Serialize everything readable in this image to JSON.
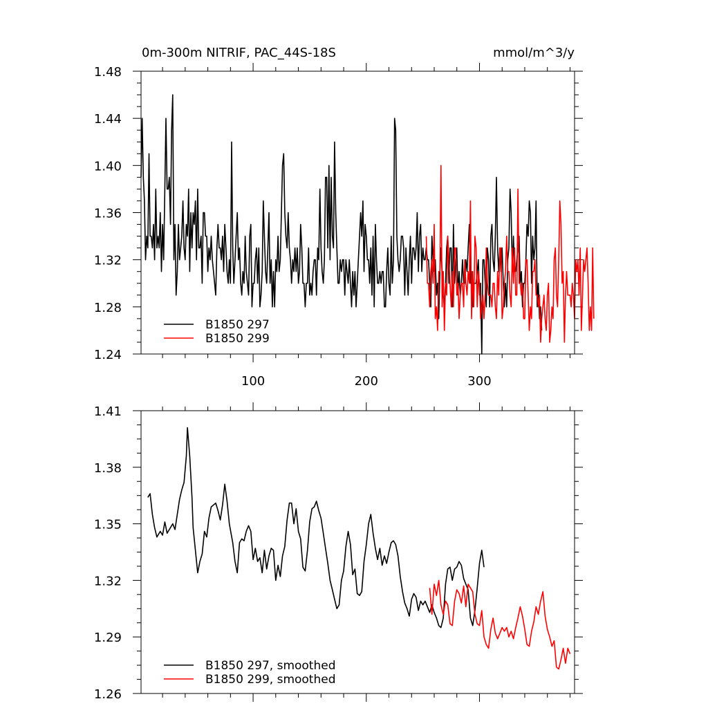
{
  "chart_data": [
    {
      "type": "line",
      "title_left": "0m-300m NITRIF, PAC_44S-18S",
      "title_right": "mmol/m^3/y",
      "xlabel": "",
      "ylabel": "",
      "xlim": [
        1,
        384
      ],
      "ylim": [
        1.24,
        1.48
      ],
      "x_ticks": [
        100,
        200,
        300
      ],
      "x_tick_labels": [
        "100",
        "200",
        "300"
      ],
      "y_ticks": [
        1.24,
        1.28,
        1.32,
        1.36,
        1.4,
        1.44,
        1.48
      ],
      "y_tick_labels": [
        "1.24",
        "1.28",
        "1.32",
        "1.36",
        "1.40",
        "1.44",
        "1.48"
      ],
      "grid": false,
      "legend_position": "bottom-left",
      "series": [
        {
          "name": "B1850 297",
          "color": "#000000",
          "x_start": 1,
          "values": [
            1.39,
            1.44,
            1.39,
            1.37,
            1.32,
            1.34,
            1.33,
            1.41,
            1.34,
            1.34,
            1.33,
            1.35,
            1.32,
            1.38,
            1.33,
            1.34,
            1.33,
            1.36,
            1.31,
            1.35,
            1.32,
            1.38,
            1.44,
            1.38,
            1.38,
            1.39,
            1.35,
            1.43,
            1.46,
            1.32,
            1.35,
            1.29,
            1.31,
            1.35,
            1.32,
            1.33,
            1.34,
            1.37,
            1.33,
            1.32,
            1.35,
            1.34,
            1.38,
            1.31,
            1.36,
            1.33,
            1.36,
            1.35,
            1.37,
            1.32,
            1.38,
            1.33,
            1.33,
            1.34,
            1.3,
            1.36,
            1.36,
            1.34,
            1.34,
            1.31,
            1.33,
            1.32,
            1.34,
            1.32,
            1.31,
            1.3,
            1.29,
            1.33,
            1.35,
            1.33,
            1.33,
            1.32,
            1.34,
            1.31,
            1.35,
            1.33,
            1.31,
            1.3,
            1.32,
            1.3,
            1.42,
            1.33,
            1.3,
            1.32,
            1.34,
            1.36,
            1.32,
            1.33,
            1.3,
            1.29,
            1.31,
            1.3,
            1.34,
            1.31,
            1.3,
            1.29,
            1.34,
            1.35,
            1.28,
            1.3,
            1.3,
            1.32,
            1.33,
            1.3,
            1.33,
            1.28,
            1.29,
            1.31,
            1.37,
            1.34,
            1.31,
            1.3,
            1.33,
            1.36,
            1.3,
            1.32,
            1.28,
            1.31,
            1.28,
            1.32,
            1.31,
            1.34,
            1.31,
            1.32,
            1.36,
            1.4,
            1.41,
            1.36,
            1.34,
            1.33,
            1.36,
            1.33,
            1.32,
            1.3,
            1.32,
            1.31,
            1.33,
            1.31,
            1.33,
            1.3,
            1.31,
            1.35,
            1.33,
            1.3,
            1.3,
            1.28,
            1.3,
            1.3,
            1.33,
            1.29,
            1.3,
            1.29,
            1.31,
            1.32,
            1.32,
            1.29,
            1.33,
            1.32,
            1.38,
            1.33,
            1.31,
            1.3,
            1.32,
            1.39,
            1.39,
            1.33,
            1.4,
            1.32,
            1.39,
            1.34,
            1.33,
            1.42,
            1.36,
            1.33,
            1.3,
            1.3,
            1.32,
            1.31,
            1.32,
            1.32,
            1.29,
            1.32,
            1.31,
            1.3,
            1.32,
            1.3,
            1.28,
            1.31,
            1.29,
            1.31,
            1.28,
            1.3,
            1.32,
            1.34,
            1.36,
            1.34,
            1.37,
            1.31,
            1.35,
            1.34,
            1.32,
            1.32,
            1.3,
            1.33,
            1.29,
            1.34,
            1.28,
            1.35,
            1.32,
            1.3,
            1.3,
            1.31,
            1.3,
            1.31,
            1.31,
            1.28,
            1.28,
            1.31,
            1.33,
            1.3,
            1.29,
            1.34,
            1.3,
            1.32,
            1.44,
            1.43,
            1.34,
            1.32,
            1.31,
            1.32,
            1.34,
            1.34,
            1.33,
            1.29,
            1.33,
            1.31,
            1.29,
            1.32,
            1.34,
            1.3,
            1.33,
            1.33,
            1.32,
            1.33,
            1.36,
            1.31,
            1.34,
            1.35,
            1.31,
            1.33,
            1.32,
            1.32,
            1.33,
            1.32,
            1.32,
            1.3,
            1.28,
            1.34,
            1.32,
            1.31,
            1.32,
            1.29,
            1.3,
            1.27,
            1.31,
            1.33,
            1.31,
            1.29,
            1.28,
            1.3,
            1.33,
            1.34,
            1.3,
            1.33,
            1.33,
            1.28,
            1.35,
            1.3,
            1.32,
            1.33,
            1.29,
            1.31,
            1.29,
            1.3,
            1.32,
            1.3,
            1.3,
            1.32,
            1.31,
            1.33,
            1.35,
            1.3,
            1.31,
            1.28,
            1.3,
            1.3,
            1.3,
            1.31,
            1.32,
            1.29,
            1.3,
            1.24,
            1.32,
            1.32,
            1.3,
            1.28,
            1.33,
            1.32,
            1.28,
            1.34,
            1.35,
            1.32,
            1.31,
            1.34,
            1.39,
            1.33,
            1.31,
            1.33,
            1.31,
            1.33,
            1.3,
            1.28,
            1.3,
            1.28,
            1.32,
            1.33,
            1.38,
            1.36,
            1.31,
            1.34,
            1.31,
            1.31,
            1.32,
            1.33,
            1.34,
            1.3,
            1.31,
            1.28,
            1.3,
            1.3,
            1.32,
            1.35,
            1.34,
            1.37,
            1.36,
            1.3,
            1.34,
            1.32,
            1.33,
            1.37,
            1.28,
            1.3,
            1.27,
            1.28,
            1.26
          ]
        },
        {
          "name": "B1850 299",
          "color": "#ff0000",
          "x_start": 253,
          "values": [
            1.34,
            1.3,
            1.3,
            1.28,
            1.31,
            1.32,
            1.3,
            1.35,
            1.27,
            1.28,
            1.26,
            1.31,
            1.31,
            1.4,
            1.28,
            1.31,
            1.26,
            1.3,
            1.29,
            1.34,
            1.32,
            1.3,
            1.28,
            1.31,
            1.28,
            1.33,
            1.33,
            1.29,
            1.3,
            1.27,
            1.29,
            1.3,
            1.3,
            1.28,
            1.32,
            1.3,
            1.29,
            1.31,
            1.3,
            1.37,
            1.27,
            1.31,
            1.28,
            1.34,
            1.33,
            1.28,
            1.31,
            1.3,
            1.27,
            1.28,
            1.29,
            1.27,
            1.29,
            1.33,
            1.3,
            1.29,
            1.29,
            1.29,
            1.28,
            1.3,
            1.3,
            1.28,
            1.27,
            1.31,
            1.29,
            1.33,
            1.33,
            1.27,
            1.28,
            1.3,
            1.31,
            1.34,
            1.31,
            1.31,
            1.29,
            1.28,
            1.33,
            1.3,
            1.33,
            1.29,
            1.29,
            1.38,
            1.3,
            1.3,
            1.29,
            1.3,
            1.27,
            1.27,
            1.32,
            1.32,
            1.29,
            1.26,
            1.28,
            1.27,
            1.31,
            1.31,
            1.32,
            1.29,
            1.29,
            1.28,
            1.29,
            1.25,
            1.27,
            1.28,
            1.29,
            1.27,
            1.26,
            1.29,
            1.3,
            1.25,
            1.26,
            1.28,
            1.27,
            1.32,
            1.33,
            1.29,
            1.28,
            1.32,
            1.37,
            1.35,
            1.3,
            1.31,
            1.25,
            1.29,
            1.31,
            1.29,
            1.29,
            1.29,
            1.28,
            1.3,
            1.29,
            1.27,
            1.32,
            1.31,
            1.32,
            1.29,
            1.33,
            1.26,
            1.29,
            1.32,
            1.31,
            1.32,
            1.33,
            1.3,
            1.26,
            1.28,
            1.26,
            1.33,
            1.27
          ]
        }
      ]
    },
    {
      "type": "line",
      "xlim": [
        1,
        384
      ],
      "ylim": [
        1.26,
        1.41
      ],
      "x_ticks": [
        100,
        200,
        300
      ],
      "x_tick_labels": [],
      "y_ticks": [
        1.26,
        1.29,
        1.32,
        1.35,
        1.38,
        1.41
      ],
      "y_tick_labels": [
        "1.26",
        "1.29",
        "1.32",
        "1.35",
        "1.38",
        "1.41"
      ],
      "grid": false,
      "legend_position": "bottom-left",
      "series": [
        {
          "name": "B1850 297, smoothed",
          "color": "#000000",
          "x": [
            7,
            9,
            11,
            13,
            15,
            18,
            20,
            22,
            24,
            25,
            27,
            29,
            31,
            33,
            35,
            37,
            39,
            41,
            42,
            44,
            46,
            47,
            49,
            51,
            53,
            55,
            57,
            59,
            61,
            63,
            65,
            67,
            69,
            71,
            73,
            75,
            77,
            79,
            82,
            84,
            86,
            88,
            90,
            92,
            94,
            96,
            98,
            100,
            102,
            104,
            106,
            108,
            110,
            112,
            114,
            116,
            118,
            120,
            122,
            124,
            126,
            128,
            130,
            132,
            134,
            136,
            138,
            140,
            142,
            144,
            146,
            148,
            150,
            152,
            154,
            156,
            158,
            160,
            162,
            164,
            166,
            168,
            170,
            172,
            174,
            176,
            178,
            180,
            182,
            184,
            186,
            188,
            190,
            192,
            194,
            196,
            198,
            200,
            202,
            204,
            206,
            208,
            210,
            212,
            214,
            216,
            218,
            220,
            222,
            224,
            226,
            228,
            230,
            232,
            234,
            236,
            238,
            240,
            242,
            244,
            246,
            248,
            250,
            252,
            254,
            256,
            258,
            260,
            262,
            264,
            266,
            268,
            270,
            272,
            274,
            276,
            278,
            280,
            282,
            284,
            286,
            288,
            290,
            292,
            294,
            296,
            298,
            300,
            302,
            304
          ],
          "y": [
            1.364,
            1.366,
            1.355,
            1.348,
            1.343,
            1.346,
            1.344,
            1.351,
            1.345,
            1.346,
            1.348,
            1.35,
            1.347,
            1.355,
            1.363,
            1.368,
            1.372,
            1.386,
            1.401,
            1.386,
            1.364,
            1.348,
            1.336,
            1.324,
            1.33,
            1.334,
            1.346,
            1.343,
            1.353,
            1.359,
            1.36,
            1.361,
            1.357,
            1.352,
            1.36,
            1.371,
            1.362,
            1.35,
            1.34,
            1.33,
            1.324,
            1.34,
            1.342,
            1.341,
            1.346,
            1.349,
            1.346,
            1.331,
            1.337,
            1.33,
            1.332,
            1.324,
            1.336,
            1.326,
            1.333,
            1.337,
            1.336,
            1.32,
            1.328,
            1.322,
            1.333,
            1.338,
            1.352,
            1.361,
            1.361,
            1.35,
            1.358,
            1.346,
            1.342,
            1.327,
            1.325,
            1.336,
            1.351,
            1.358,
            1.359,
            1.362,
            1.357,
            1.353,
            1.345,
            1.337,
            1.329,
            1.32,
            1.315,
            1.31,
            1.305,
            1.307,
            1.32,
            1.325,
            1.338,
            1.346,
            1.339,
            1.323,
            1.326,
            1.313,
            1.312,
            1.314,
            1.33,
            1.339,
            1.35,
            1.355,
            1.345,
            1.337,
            1.331,
            1.337,
            1.328,
            1.333,
            1.329,
            1.335,
            1.34,
            1.341,
            1.339,
            1.333,
            1.322,
            1.314,
            1.308,
            1.305,
            1.301,
            1.31,
            1.313,
            1.311,
            1.304,
            1.309,
            1.307,
            1.309,
            1.306,
            1.303,
            1.307,
            1.303,
            1.3,
            1.296,
            1.295,
            1.3,
            1.318,
            1.326,
            1.327,
            1.32,
            1.326,
            1.327,
            1.33,
            1.328,
            1.321,
            1.318,
            1.315,
            1.3,
            1.296,
            1.304,
            1.316,
            1.329,
            1.336,
            1.327
          ]
        },
        {
          "name": "B1850 299, smoothed",
          "color": "#ff0000",
          "x": [
            256,
            258,
            260,
            262,
            264,
            266,
            268,
            270,
            272,
            274,
            276,
            278,
            280,
            282,
            284,
            286,
            288,
            290,
            292,
            294,
            296,
            298,
            300,
            302,
            304,
            306,
            308,
            310,
            312,
            314,
            316,
            318,
            320,
            322,
            324,
            326,
            328,
            330,
            332,
            334,
            336,
            338,
            340,
            342,
            344,
            346,
            348,
            350,
            352,
            354,
            356,
            358,
            360,
            362,
            364,
            366,
            368,
            370,
            372,
            374,
            376,
            378,
            380
          ],
          "y": [
            1.316,
            1.302,
            1.318,
            1.312,
            1.32,
            1.307,
            1.302,
            1.309,
            1.307,
            1.297,
            1.296,
            1.309,
            1.315,
            1.313,
            1.308,
            1.317,
            1.306,
            1.318,
            1.316,
            1.314,
            1.302,
            1.297,
            1.296,
            1.304,
            1.29,
            1.286,
            1.284,
            1.294,
            1.3,
            1.292,
            1.289,
            1.292,
            1.295,
            1.293,
            1.295,
            1.29,
            1.293,
            1.289,
            1.295,
            1.3,
            1.306,
            1.301,
            1.294,
            1.286,
            1.285,
            1.293,
            1.298,
            1.306,
            1.302,
            1.309,
            1.314,
            1.301,
            1.294,
            1.29,
            1.285,
            1.288,
            1.274,
            1.273,
            1.278,
            1.284,
            1.276,
            1.284,
            1.281
          ]
        }
      ]
    }
  ]
}
